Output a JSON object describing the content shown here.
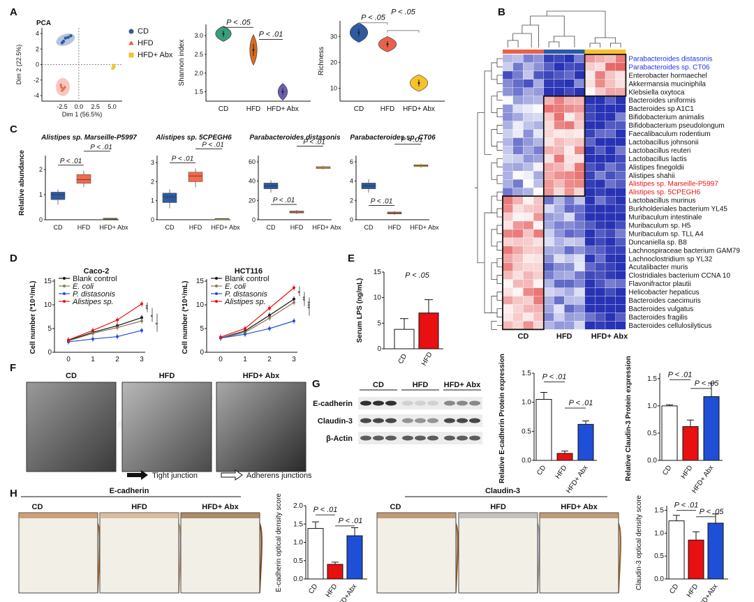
{
  "panel_letters": [
    "A",
    "B",
    "C",
    "D",
    "E",
    "F",
    "G",
    "H"
  ],
  "colors": {
    "CD": "#2d5aa0",
    "HFD": "#e8624a",
    "Abx": "#f6c22a",
    "blue": "#1f4fd6",
    "red": "#e81010",
    "black": "#111111",
    "olive": "#8a7a55"
  },
  "panelA": {
    "pca": {
      "title": "PCA",
      "xlabel": "Dim 1 (56.5%)",
      "ylabel": "Dim 2 (22.5%)",
      "xticks": [
        "-2.5",
        "0.0",
        "2.5",
        "5.0"
      ],
      "yticks": [
        "4",
        "2",
        "0",
        "-2",
        "-4"
      ]
    },
    "legend": [
      "CD",
      "HFD",
      "HFD+ Abx"
    ],
    "shannon": {
      "ylabel": "Shannon index",
      "yticks": [
        "3.0",
        "2.5",
        "2.0",
        "1.5"
      ],
      "categories": [
        "CD",
        "HFD",
        "HFD+ Abx"
      ],
      "p1": "P < .05",
      "p2": "P < .01"
    },
    "richness": {
      "ylabel": "Richness",
      "yticks": [
        "30",
        "20",
        "10"
      ],
      "categories": [
        "CD",
        "HFD",
        "HFD+ Abx"
      ],
      "p1": "P < .05",
      "p2": "P < .05"
    }
  },
  "panelB": {
    "species": [
      "Parabacteroides distasonis",
      "Parabacteroides sp. CT06",
      "Enterobacter hormaechel",
      "Akkermansia muciniphila",
      "Klebsiella oxytoca",
      "Bacteroides uniformis",
      "Bacteroides sp A1C1",
      "Bifidobacterium animalis",
      "Bifidobacterium pseudolongum",
      "Faecalibaculum rodentium",
      "Lactobacillus johnsonii",
      "Lactobacillus reuteri",
      "Lactobacillus lactis",
      "Alistipes finegoldii",
      "Alistipes shahii",
      "Alistipes sp. Marseille-P5997",
      "Alistipes sp. 5CPEGH6",
      "Lactobacillus murinus",
      "Burkholderiales bacterium YL45",
      "Muribaculum intestinale",
      "Muribaculum sp. H5",
      "Muribaculum sp. TLL A4",
      "Duncaniella sp. B8",
      "Lachnospiraceae bacterium GAM79",
      "Lachnoclostridium sp YL32",
      "Acutalibacter muris",
      "Clostridiales bacterium CCNA 10",
      "Flavonifractor plautii",
      "Helicobacter hepaticus",
      "Bacteroides caecimuris",
      "Bacteroides vulgatus",
      "Bacteroides fragilis",
      "Bacteroides cellulosilyticus"
    ],
    "species_color": [
      "blue",
      "blue",
      "black",
      "black",
      "black",
      "black",
      "black",
      "black",
      "black",
      "black",
      "black",
      "black",
      "black",
      "black",
      "black",
      "red",
      "red",
      "black",
      "black",
      "black",
      "black",
      "black",
      "black",
      "black",
      "black",
      "black",
      "black",
      "black",
      "black",
      "black",
      "black",
      "black",
      "black"
    ],
    "groups": [
      "CD",
      "HFD",
      "HFD+ Abx"
    ]
  },
  "panelC": {
    "ylabel": "Relative abundance",
    "categories": [
      "CD",
      "HFD",
      "HFD+ Abx"
    ],
    "plots": [
      {
        "title": "Alistipes sp. Marseille-P5997",
        "yticks": [
          "2",
          "1",
          "0"
        ],
        "ymax": 2.5,
        "p1": "P < .01",
        "p2": "P < .01",
        "q": [
          [
            0.6,
            0.8,
            1.0,
            1.1,
            1.2
          ],
          [
            1.3,
            1.45,
            1.6,
            1.8,
            1.95
          ],
          [
            0.02,
            0.04,
            0.05,
            0.06,
            0.08
          ]
        ]
      },
      {
        "title": "Alistipes sp. 5CPEGH6",
        "yticks": [
          "3",
          "2",
          "1",
          "0"
        ],
        "ymax": 3.3,
        "p1": "P < .01",
        "p2": "P < .01",
        "q": [
          [
            0.6,
            0.9,
            1.2,
            1.4,
            1.6
          ],
          [
            1.7,
            2.0,
            2.3,
            2.5,
            2.7
          ],
          [
            0.02,
            0.03,
            0.05,
            0.06,
            0.08
          ]
        ]
      },
      {
        "title": "Parabacteroides distasonis",
        "yticks": [
          "60",
          "40",
          "20",
          "0"
        ],
        "ymax": 65,
        "p1": "P < .01",
        "p2": "P < .01",
        "q": [
          [
            28,
            32,
            35,
            38,
            41
          ],
          [
            6,
            7,
            8,
            9,
            10
          ],
          [
            52,
            53,
            54,
            55,
            56
          ]
        ]
      },
      {
        "title": "Parabacteroides sp. CT06",
        "yticks": [
          "6",
          "4",
          "2",
          "0"
        ],
        "ymax": 6.5,
        "p1": "P < .01",
        "p2": "P < .01",
        "q": [
          [
            2.8,
            3.2,
            3.5,
            3.8,
            4.2
          ],
          [
            0.5,
            0.6,
            0.7,
            0.8,
            0.9
          ],
          [
            5.4,
            5.5,
            5.6,
            5.7,
            5.8
          ]
        ]
      }
    ]
  },
  "panelD": {
    "xlabel_ticks": [
      "0",
      "1",
      "2",
      "3"
    ],
    "ylabel": "Cell number (*10⁴/mL)",
    "legend": [
      "Blank control",
      "E. coli",
      "P. distasonis",
      "Alistipes sp."
    ],
    "plots": [
      {
        "title": "Caco-2",
        "yticks": [
          "0",
          "5",
          "10",
          "15"
        ],
        "ymax": 15,
        "series": [
          [
            2.5,
            4.2,
            5.6,
            7.3
          ],
          [
            2.4,
            4.0,
            5.2,
            6.6
          ],
          [
            2.2,
            2.8,
            3.3,
            4.6
          ],
          [
            2.6,
            4.6,
            6.8,
            10.2
          ]
        ],
        "stars": [
          "**",
          "*",
          "*"
        ]
      },
      {
        "title": "HCT116",
        "yticks": [
          "0",
          "5",
          "10",
          "15"
        ],
        "ymax": 15,
        "series": [
          [
            3.0,
            4.5,
            7.8,
            11.2
          ],
          [
            3.0,
            4.2,
            7.2,
            10.5
          ],
          [
            3.0,
            3.8,
            5.0,
            6.6
          ],
          [
            3.2,
            5.0,
            9.3,
            13.6
          ]
        ],
        "stars": [
          "*",
          "**",
          "***"
        ]
      }
    ]
  },
  "panelE": {
    "ylabel": "Serum LPS (ng/mL)",
    "yticks": [
      "0",
      "5",
      "10",
      "15"
    ],
    "categories": [
      "CD",
      "HFD"
    ],
    "values": [
      3.8,
      7.0
    ],
    "errors": [
      2.1,
      2.6
    ],
    "ymax": 15,
    "p": "P < .05"
  },
  "panelF": {
    "titles": [
      "CD",
      "HFD",
      "HFD+ Abx"
    ],
    "legend": [
      "Tight junction",
      "Adherens junctions"
    ]
  },
  "panelG": {
    "blot_groups": [
      "CD",
      "HFD",
      "HFD+ Abx"
    ],
    "blot_rows": [
      "E-cadherin",
      "Claudin-3",
      "β-Actin"
    ],
    "ecad": {
      "ylabel": "Relative E-cadherin Protein expression",
      "yticks": [
        "0.0",
        "0.5",
        "1.0",
        "1.5"
      ],
      "ymax": 1.5,
      "categories": [
        "CD",
        "HFD",
        "HFD+ Abx"
      ],
      "values": [
        1.05,
        0.12,
        0.62
      ],
      "errors": [
        0.12,
        0.04,
        0.06
      ],
      "p1": "P < .01",
      "p2": "P < .01"
    },
    "cld": {
      "ylabel": "Relative Claudin-3 Protein expression",
      "yticks": [
        "0.0",
        "0.5",
        "1.0",
        "1.5"
      ],
      "ymax": 1.6,
      "categories": [
        "CD",
        "HFD",
        "HFD+ Abx"
      ],
      "values": [
        1.0,
        0.62,
        1.17
      ],
      "errors": [
        0.02,
        0.12,
        0.25
      ],
      "p1": "P < .01",
      "p2": "P < .05"
    }
  },
  "panelH": {
    "ecad_header": "E-cadherin",
    "cld_header": "Claudin-3",
    "titles": [
      "CD",
      "HFD",
      "HFD+ Abx"
    ],
    "ecad": {
      "ylabel": "E-cadherin optical density score",
      "yticks": [
        "0.0",
        "0.5",
        "1.0",
        "1.5",
        "2.0"
      ],
      "ymax": 2.0,
      "categories": [
        "CD",
        "HFD",
        "HFD+Abx"
      ],
      "values": [
        1.38,
        0.4,
        1.18
      ],
      "errors": [
        0.18,
        0.06,
        0.22
      ],
      "p1": "P < .01",
      "p2": "P < .01"
    },
    "cld": {
      "ylabel": "Claudin-3 optical density score",
      "yticks": [
        "0.0",
        "0.5",
        "1.0",
        "1.5"
      ],
      "ymax": 1.6,
      "categories": [
        "CD",
        "HFD",
        "HFD+Abx"
      ],
      "values": [
        1.27,
        0.85,
        1.22
      ],
      "errors": [
        0.12,
        0.18,
        0.2
      ],
      "p1": "P < .01",
      "p2": "P < .05"
    }
  }
}
